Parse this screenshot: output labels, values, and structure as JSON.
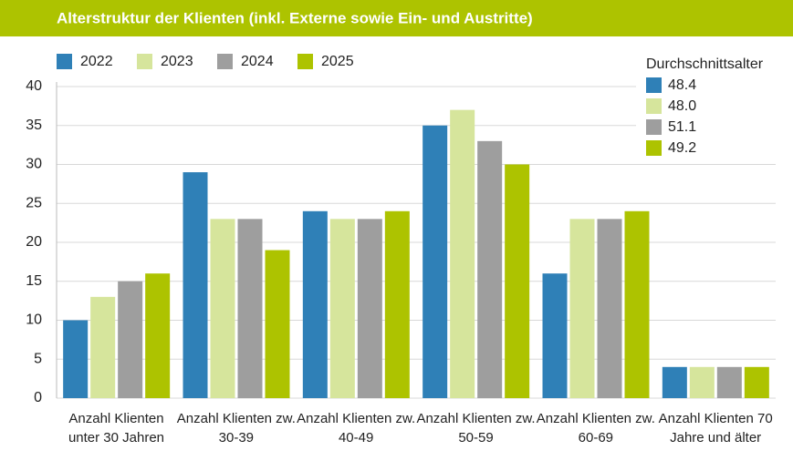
{
  "chart_data": {
    "type": "bar",
    "title": "Alterstruktur der Klienten (inkl. Externe sowie Ein- und Austritte)",
    "categories": [
      "Anzahl Klienten unter 30 Jahren",
      "Anzahl Klienten zw. 30-39",
      "Anzahl Klienten zw. 40-49",
      "Anzahl Klienten zw. 50-59",
      "Anzahl Klienten zw. 60-69",
      "Anzahl Klienten 70 Jahre und älter"
    ],
    "series": [
      {
        "name": "2022",
        "color": "#2f80b7",
        "values": [
          10,
          29,
          24,
          35,
          16,
          4
        ]
      },
      {
        "name": "2023",
        "color": "#d6e59c",
        "values": [
          13,
          23,
          23,
          37,
          23,
          4
        ]
      },
      {
        "name": "2024",
        "color": "#9e9e9e",
        "values": [
          15,
          23,
          23,
          33,
          23,
          4
        ]
      },
      {
        "name": "2025",
        "color": "#adc300",
        "values": [
          16,
          19,
          24,
          30,
          24,
          4
        ]
      }
    ],
    "ylim": [
      0,
      40
    ],
    "yticks": [
      0,
      5,
      10,
      15,
      20,
      25,
      30,
      35,
      40
    ],
    "grid": true,
    "average_age": {
      "title": "Durchschnittsalter",
      "values": [
        48.4,
        48.0,
        51.1,
        49.2
      ],
      "value_labels": [
        "48.4",
        "48.0",
        "51.1",
        "49.2"
      ]
    }
  }
}
